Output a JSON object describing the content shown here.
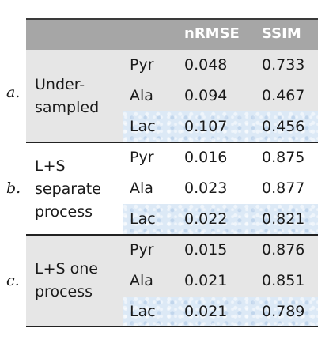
{
  "table": {
    "headers": [
      "nRMSE",
      "SSIM"
    ],
    "groups": [
      {
        "mark": "a.",
        "label_lines": [
          "Under-",
          "sampled"
        ],
        "rows": [
          {
            "metabolite": "Pyr",
            "nrmse": "0.048",
            "ssim": "0.733"
          },
          {
            "metabolite": "Ala",
            "nrmse": "0.094",
            "ssim": "0.467"
          },
          {
            "metabolite": "Lac",
            "nrmse": "0.107",
            "ssim": "0.456"
          }
        ]
      },
      {
        "mark": "b.",
        "label_lines": [
          "L+S",
          "separate",
          "process"
        ],
        "rows": [
          {
            "metabolite": "Pyr",
            "nrmse": "0.016",
            "ssim": "0.875"
          },
          {
            "metabolite": "Ala",
            "nrmse": "0.023",
            "ssim": "0.877"
          },
          {
            "metabolite": "Lac",
            "nrmse": "0.022",
            "ssim": "0.821"
          }
        ]
      },
      {
        "mark": "c.",
        "label_lines": [
          "L+S one",
          "process"
        ],
        "rows": [
          {
            "metabolite": "Pyr",
            "nrmse": "0.015",
            "ssim": "0.876"
          },
          {
            "metabolite": "Ala",
            "nrmse": "0.021",
            "ssim": "0.851"
          },
          {
            "metabolite": "Lac",
            "nrmse": "0.021",
            "ssim": "0.789"
          }
        ]
      }
    ]
  }
}
